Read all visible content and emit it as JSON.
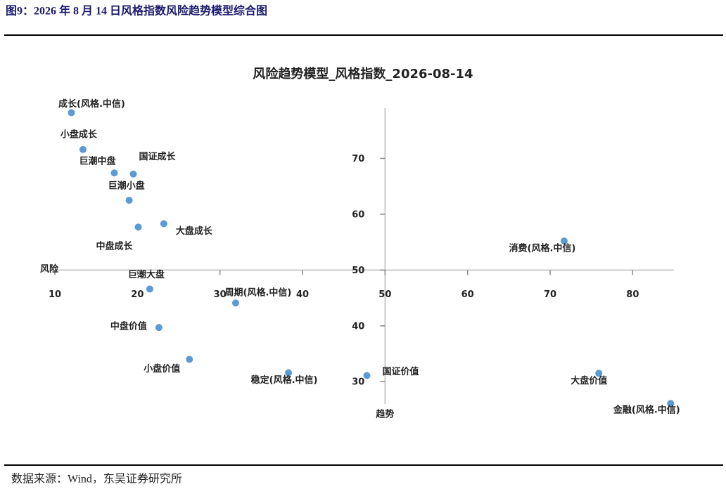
{
  "header": {
    "title": "图9：2026 年 8 月 14 日风格指数风险趋势模型综合图"
  },
  "footer": {
    "source": "数据来源：Wind，东吴证券研究所"
  },
  "chart_data": {
    "type": "scatter",
    "title": "风险趋势模型_风格指数_2026-08-14",
    "x_label": "风险",
    "y_label": "趋势",
    "color": "#5b9bd5",
    "labels": [
      "成长(风格.中信)",
      "小盘成长",
      "巨潮中盘",
      "国证成长",
      "巨潮小盘",
      "中盘成长",
      "大盘成长",
      "巨潮大盘",
      "周期(风格.中信)",
      "中盘价值",
      "小盘价值",
      "稳定(风格.中信)",
      "国证价值",
      "消费(风格.中信)",
      "大盘价值",
      "金融(风格.中信)"
    ],
    "x": [
      12.0,
      13.4,
      17.2,
      19.5,
      19.0,
      20.1,
      23.2,
      21.5,
      31.9,
      22.6,
      26.3,
      38.3,
      47.8,
      71.7,
      75.9,
      84.6
    ],
    "values": [
      78.2,
      71.6,
      67.4,
      67.2,
      62.5,
      57.7,
      58.3,
      46.6,
      44.1,
      39.7,
      34.0,
      31.6,
      31.1,
      55.2,
      31.5,
      26.1
    ],
    "xlim": [
      10,
      85
    ],
    "ylim": [
      26,
      79
    ],
    "xticks": [
      10,
      20,
      30,
      40,
      50,
      60,
      70,
      80
    ],
    "yticks": [
      30,
      40,
      50,
      60,
      70
    ],
    "axis_cross": [
      50,
      50
    ]
  }
}
